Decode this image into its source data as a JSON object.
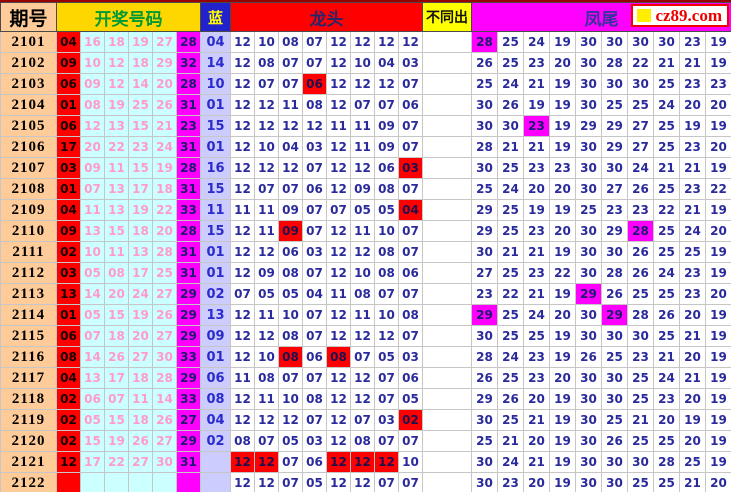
{
  "header": {
    "period": "期号",
    "numbers": "开奖号码",
    "blue": "蓝",
    "dragon": "龙头",
    "diff": "不同出",
    "phoenix": "凤尾"
  },
  "logo": {
    "text": "cz89.com"
  },
  "colors": {
    "period_bg": "#FFCC99",
    "numbers_header_bg": "#FFD700",
    "numbers_header_text": "#009933",
    "blue_header_bg": "#2222CC",
    "blue_header_text": "#FFFF00",
    "dragon_header_bg": "#FF0000",
    "diff_header_bg": "#FFFF00",
    "phoenix_header_bg": "#FF00FF",
    "ball_first_bg": "#FF0000",
    "ball_mid_bg": "#CCFFFF",
    "ball_mid_text": "#FF9ACC",
    "ball_last_bg": "#FF00FF",
    "blue_ball_bg": "#CCCCFF",
    "body_number_text": "#2A2A9C",
    "highlight_red": "#FF0000",
    "highlight_magenta": "#FF00FF",
    "logo_text": "#EE0000"
  },
  "chart_data": {
    "type": "table",
    "column_groups": [
      "期号",
      "开奖号码",
      "蓝",
      "龙头",
      "不同出",
      "凤尾"
    ],
    "dragon_columns": 8,
    "phoenix_columns": 10,
    "rows": [
      {
        "period": "2101",
        "balls": [
          "04",
          "16",
          "18",
          "19",
          "27",
          "28"
        ],
        "blue": "04",
        "dragon": [
          "12",
          "10",
          "08",
          "07",
          "12",
          "12",
          "12",
          "12"
        ],
        "dragon_hl": [],
        "diff": "",
        "phoenix": [
          "28",
          "25",
          "24",
          "19",
          "30",
          "30",
          "30",
          "30",
          "23",
          "19"
        ],
        "phoenix_hl": [
          0
        ]
      },
      {
        "period": "2102",
        "balls": [
          "09",
          "10",
          "12",
          "18",
          "29",
          "32"
        ],
        "blue": "14",
        "dragon": [
          "12",
          "08",
          "07",
          "07",
          "12",
          "10",
          "04",
          "03"
        ],
        "dragon_hl": [],
        "diff": "",
        "phoenix": [
          "26",
          "25",
          "23",
          "20",
          "30",
          "28",
          "22",
          "21",
          "21",
          "19"
        ],
        "phoenix_hl": []
      },
      {
        "period": "2103",
        "balls": [
          "06",
          "09",
          "12",
          "14",
          "20",
          "28"
        ],
        "blue": "10",
        "dragon": [
          "12",
          "07",
          "07",
          "06",
          "12",
          "12",
          "12",
          "07"
        ],
        "dragon_hl": [
          3
        ],
        "diff": "",
        "phoenix": [
          "25",
          "24",
          "21",
          "19",
          "30",
          "30",
          "30",
          "25",
          "23",
          "23"
        ],
        "phoenix_hl": []
      },
      {
        "period": "2104",
        "balls": [
          "01",
          "08",
          "19",
          "25",
          "26",
          "31"
        ],
        "blue": "01",
        "dragon": [
          "12",
          "12",
          "11",
          "08",
          "12",
          "07",
          "07",
          "06"
        ],
        "dragon_hl": [],
        "diff": "",
        "phoenix": [
          "30",
          "26",
          "19",
          "19",
          "30",
          "25",
          "25",
          "24",
          "20",
          "20"
        ],
        "phoenix_hl": []
      },
      {
        "period": "2105",
        "balls": [
          "06",
          "12",
          "13",
          "15",
          "21",
          "23"
        ],
        "blue": "15",
        "dragon": [
          "12",
          "12",
          "12",
          "12",
          "11",
          "11",
          "09",
          "07"
        ],
        "dragon_hl": [],
        "diff": "",
        "phoenix": [
          "30",
          "30",
          "23",
          "19",
          "29",
          "29",
          "27",
          "25",
          "19",
          "19"
        ],
        "phoenix_hl": [
          2
        ]
      },
      {
        "period": "2106",
        "balls": [
          "17",
          "20",
          "22",
          "23",
          "24",
          "31"
        ],
        "blue": "01",
        "dragon": [
          "12",
          "10",
          "04",
          "03",
          "12",
          "11",
          "09",
          "07"
        ],
        "dragon_hl": [],
        "diff": "",
        "phoenix": [
          "28",
          "21",
          "21",
          "19",
          "30",
          "29",
          "27",
          "25",
          "23",
          "20"
        ],
        "phoenix_hl": []
      },
      {
        "period": "2107",
        "balls": [
          "03",
          "09",
          "11",
          "15",
          "19",
          "28"
        ],
        "blue": "16",
        "dragon": [
          "12",
          "12",
          "12",
          "07",
          "12",
          "12",
          "06",
          "03"
        ],
        "dragon_hl": [
          7
        ],
        "diff": "",
        "phoenix": [
          "30",
          "25",
          "23",
          "23",
          "30",
          "30",
          "24",
          "21",
          "21",
          "19"
        ],
        "phoenix_hl": []
      },
      {
        "period": "2108",
        "balls": [
          "01",
          "07",
          "13",
          "17",
          "18",
          "31"
        ],
        "blue": "15",
        "dragon": [
          "12",
          "07",
          "07",
          "06",
          "12",
          "09",
          "08",
          "07"
        ],
        "dragon_hl": [],
        "diff": "",
        "phoenix": [
          "25",
          "24",
          "20",
          "20",
          "30",
          "27",
          "26",
          "25",
          "23",
          "22"
        ],
        "phoenix_hl": []
      },
      {
        "period": "2109",
        "balls": [
          "04",
          "11",
          "13",
          "19",
          "22",
          "33"
        ],
        "blue": "11",
        "dragon": [
          "11",
          "11",
          "09",
          "07",
          "07",
          "05",
          "05",
          "04"
        ],
        "dragon_hl": [
          7
        ],
        "diff": "",
        "phoenix": [
          "29",
          "25",
          "19",
          "19",
          "25",
          "23",
          "23",
          "22",
          "21",
          "19"
        ],
        "phoenix_hl": []
      },
      {
        "period": "2110",
        "balls": [
          "09",
          "13",
          "15",
          "18",
          "20",
          "28"
        ],
        "blue": "15",
        "dragon": [
          "12",
          "11",
          "09",
          "07",
          "12",
          "11",
          "10",
          "07"
        ],
        "dragon_hl": [
          2
        ],
        "diff": "",
        "phoenix": [
          "29",
          "25",
          "23",
          "20",
          "30",
          "29",
          "28",
          "25",
          "24",
          "20"
        ],
        "phoenix_hl": [
          6
        ]
      },
      {
        "period": "2111",
        "balls": [
          "02",
          "10",
          "11",
          "13",
          "28",
          "31"
        ],
        "blue": "01",
        "dragon": [
          "12",
          "12",
          "06",
          "03",
          "12",
          "12",
          "08",
          "07"
        ],
        "dragon_hl": [],
        "diff": "",
        "phoenix": [
          "30",
          "21",
          "21",
          "19",
          "30",
          "30",
          "26",
          "25",
          "25",
          "19"
        ],
        "phoenix_hl": []
      },
      {
        "period": "2112",
        "balls": [
          "03",
          "05",
          "08",
          "17",
          "25",
          "31"
        ],
        "blue": "01",
        "dragon": [
          "12",
          "09",
          "08",
          "07",
          "12",
          "10",
          "08",
          "06"
        ],
        "dragon_hl": [],
        "diff": "",
        "phoenix": [
          "27",
          "25",
          "23",
          "22",
          "30",
          "28",
          "26",
          "24",
          "23",
          "19"
        ],
        "phoenix_hl": []
      },
      {
        "period": "2113",
        "balls": [
          "13",
          "14",
          "20",
          "24",
          "27",
          "29"
        ],
        "blue": "02",
        "dragon": [
          "07",
          "05",
          "05",
          "04",
          "11",
          "08",
          "07",
          "07"
        ],
        "dragon_hl": [],
        "diff": "",
        "phoenix": [
          "23",
          "22",
          "21",
          "19",
          "29",
          "26",
          "25",
          "25",
          "23",
          "20"
        ],
        "phoenix_hl": [
          4
        ]
      },
      {
        "period": "2114",
        "balls": [
          "01",
          "05",
          "15",
          "19",
          "26",
          "29"
        ],
        "blue": "13",
        "dragon": [
          "12",
          "11",
          "10",
          "07",
          "12",
          "11",
          "10",
          "08"
        ],
        "dragon_hl": [],
        "diff": "",
        "phoenix": [
          "29",
          "25",
          "24",
          "20",
          "30",
          "29",
          "28",
          "26",
          "20",
          "19"
        ],
        "phoenix_hl": [
          0,
          5
        ]
      },
      {
        "period": "2115",
        "balls": [
          "06",
          "07",
          "18",
          "20",
          "27",
          "29"
        ],
        "blue": "09",
        "dragon": [
          "12",
          "12",
          "08",
          "07",
          "12",
          "12",
          "12",
          "07"
        ],
        "dragon_hl": [],
        "diff": "",
        "phoenix": [
          "30",
          "25",
          "25",
          "19",
          "30",
          "30",
          "30",
          "25",
          "21",
          "19"
        ],
        "phoenix_hl": []
      },
      {
        "period": "2116",
        "balls": [
          "08",
          "14",
          "26",
          "27",
          "30",
          "33"
        ],
        "blue": "01",
        "dragon": [
          "12",
          "10",
          "08",
          "06",
          "08",
          "07",
          "05",
          "03"
        ],
        "dragon_hl": [
          2,
          4
        ],
        "diff": "",
        "phoenix": [
          "28",
          "24",
          "23",
          "19",
          "26",
          "25",
          "23",
          "21",
          "20",
          "19"
        ],
        "phoenix_hl": []
      },
      {
        "period": "2117",
        "balls": [
          "04",
          "13",
          "17",
          "18",
          "28",
          "29"
        ],
        "blue": "06",
        "dragon": [
          "11",
          "08",
          "07",
          "07",
          "12",
          "12",
          "07",
          "06"
        ],
        "dragon_hl": [],
        "diff": "",
        "phoenix": [
          "26",
          "25",
          "23",
          "20",
          "30",
          "30",
          "25",
          "24",
          "21",
          "19"
        ],
        "phoenix_hl": []
      },
      {
        "period": "2118",
        "balls": [
          "02",
          "06",
          "07",
          "11",
          "14",
          "33"
        ],
        "blue": "08",
        "dragon": [
          "12",
          "11",
          "10",
          "08",
          "12",
          "12",
          "07",
          "05"
        ],
        "dragon_hl": [],
        "diff": "",
        "phoenix": [
          "29",
          "26",
          "20",
          "19",
          "30",
          "30",
          "25",
          "23",
          "20",
          "19"
        ],
        "phoenix_hl": []
      },
      {
        "period": "2119",
        "balls": [
          "02",
          "05",
          "15",
          "18",
          "26",
          "27"
        ],
        "blue": "04",
        "dragon": [
          "12",
          "12",
          "12",
          "07",
          "12",
          "07",
          "03",
          "02"
        ],
        "dragon_hl": [
          7
        ],
        "diff": "",
        "phoenix": [
          "30",
          "25",
          "21",
          "19",
          "30",
          "25",
          "21",
          "20",
          "19",
          "19"
        ],
        "phoenix_hl": []
      },
      {
        "period": "2120",
        "balls": [
          "02",
          "15",
          "19",
          "26",
          "27",
          "29"
        ],
        "blue": "02",
        "dragon": [
          "08",
          "07",
          "05",
          "03",
          "12",
          "08",
          "07",
          "07"
        ],
        "dragon_hl": [],
        "diff": "",
        "phoenix": [
          "25",
          "21",
          "20",
          "19",
          "30",
          "26",
          "25",
          "25",
          "20",
          "19"
        ],
        "phoenix_hl": []
      },
      {
        "period": "2121",
        "balls": [
          "12",
          "17",
          "22",
          "27",
          "30",
          "31"
        ],
        "blue": "",
        "dragon": [
          "12",
          "12",
          "07",
          "06",
          "12",
          "12",
          "12",
          "10"
        ],
        "dragon_hl": [
          0,
          1,
          4,
          5,
          6
        ],
        "diff": "",
        "phoenix": [
          "30",
          "24",
          "21",
          "19",
          "30",
          "30",
          "30",
          "28",
          "25",
          "19"
        ],
        "phoenix_hl": []
      },
      {
        "period": "2122",
        "balls": [
          "",
          "",
          "",
          "",
          "",
          ""
        ],
        "blue": "",
        "dragon": [
          "12",
          "12",
          "07",
          "05",
          "12",
          "12",
          "07",
          "07"
        ],
        "dragon_hl": [],
        "diff": "",
        "phoenix": [
          "30",
          "23",
          "20",
          "19",
          "30",
          "30",
          "25",
          "25",
          "21",
          "20"
        ],
        "phoenix_hl": []
      }
    ]
  }
}
